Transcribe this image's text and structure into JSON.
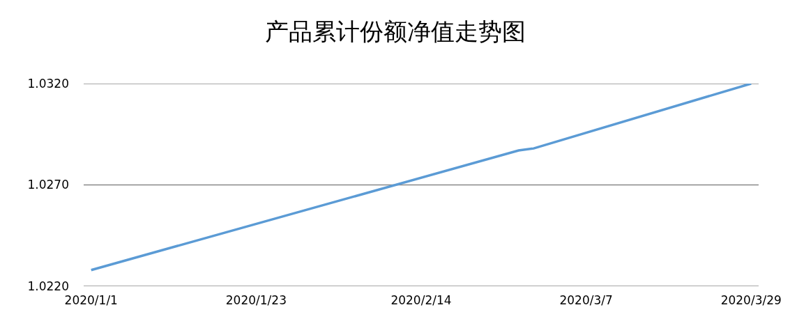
{
  "chart_data": {
    "type": "line",
    "title": "产品累计份额净值走势图",
    "x": [
      "2020-01-01",
      "2020-02-27",
      "2020-02-29",
      "2020-03-29"
    ],
    "series": [
      {
        "color": "#5b9bd5",
        "values": [
          1.0228,
          1.0287,
          1.0288,
          1.032
        ]
      }
    ],
    "xlim": [
      "2019-12-31",
      "2020-03-30"
    ],
    "xticks": [
      {
        "value": "2020-01-01",
        "label": "2020/1/1"
      },
      {
        "value": "2020-01-23",
        "label": "2020/1/23"
      },
      {
        "value": "2020-02-14",
        "label": "2020/2/14"
      },
      {
        "value": "2020-03-07",
        "label": "2020/3/7"
      },
      {
        "value": "2020-03-29",
        "label": "2020/3/29"
      }
    ],
    "ylim": [
      1.022,
      1.032
    ],
    "yticks": [
      {
        "value": 1.022,
        "label": "1.0220"
      },
      {
        "value": 1.027,
        "label": "1.0270"
      },
      {
        "value": 1.032,
        "label": "1.0320"
      }
    ],
    "grid": "y",
    "marker": "none",
    "line_style": "solid"
  }
}
